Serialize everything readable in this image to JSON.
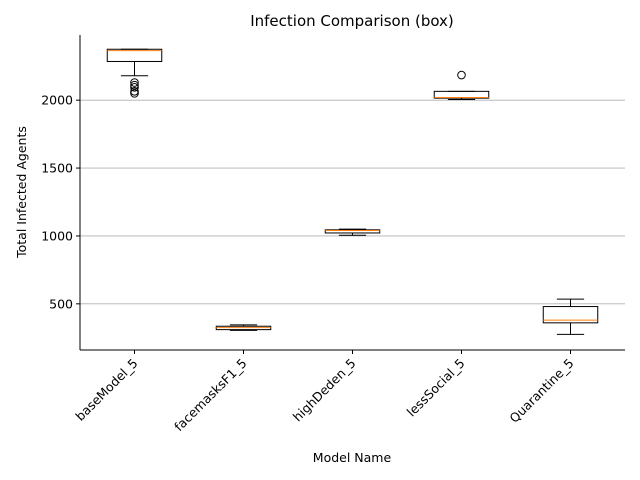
{
  "chart_data": {
    "type": "box",
    "title": "Infection Comparison (box)",
    "xlabel": "Model Name",
    "ylabel": "Total Infected Agents",
    "ylim": [
      160,
      2480
    ],
    "yticks": [
      500,
      1000,
      1500,
      2000
    ],
    "y_tick_labels": [
      "500",
      "1000",
      "1500",
      "2000"
    ],
    "grid": "y",
    "categories": [
      "baseModel_5",
      "facemasksF1_5",
      "highDeden_5",
      "lessSocial_5",
      "Quarantine_5"
    ],
    "boxes": [
      {
        "label": "baseModel_5",
        "whisker_low": 2180,
        "q1": 2285,
        "median": 2365,
        "q3": 2375,
        "whisker_high": 2375,
        "outliers": [
          2050,
          2065,
          2095,
          2110,
          2130
        ]
      },
      {
        "label": "facemasksF1_5",
        "whisker_low": 305,
        "q1": 310,
        "median": 325,
        "q3": 335,
        "whisker_high": 345,
        "outliers": []
      },
      {
        "label": "highDeden_5",
        "whisker_low": 1005,
        "q1": 1022,
        "median": 1040,
        "q3": 1045,
        "whisker_high": 1050,
        "outliers": []
      },
      {
        "label": "lessSocial_5",
        "whisker_low": 2005,
        "q1": 2015,
        "median": 2020,
        "q3": 2065,
        "whisker_high": 2065,
        "outliers": [
          2185
        ]
      },
      {
        "label": "Quarantine_5",
        "whisker_low": 275,
        "q1": 360,
        "median": 380,
        "q3": 480,
        "whisker_high": 535,
        "outliers": []
      }
    ],
    "colors": {
      "box": "#000000",
      "median": "#ff7f0e",
      "grid": "#b0b0b0"
    }
  }
}
